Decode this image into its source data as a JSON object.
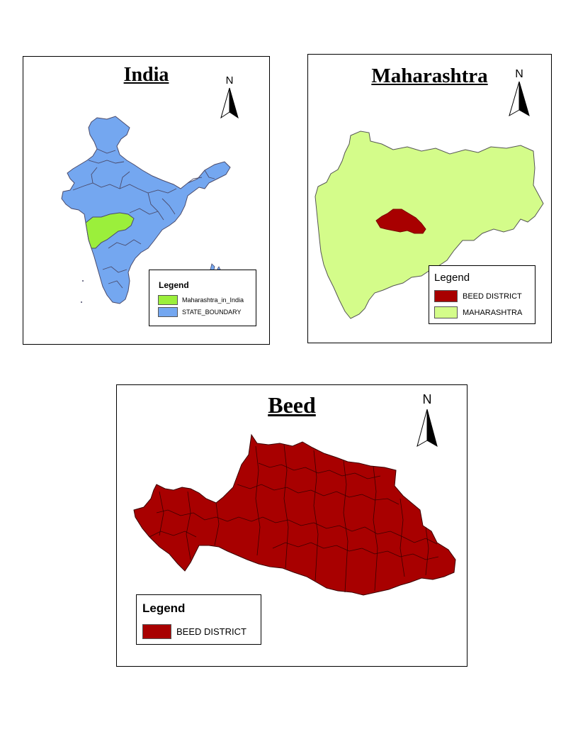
{
  "maps": {
    "india": {
      "title": "India",
      "north_label": "N",
      "legend": {
        "title": "Legend",
        "items": [
          {
            "label": "Maharashtra_in_India",
            "color": "#9bef3b"
          },
          {
            "label": "STATE_BOUNDARY",
            "color": "#74a7f0"
          }
        ]
      }
    },
    "maharashtra": {
      "title": "Maharashtra",
      "north_label": "N",
      "legend": {
        "title": "Legend",
        "items": [
          {
            "label": "BEED DISTRICT",
            "color": "#a80000"
          },
          {
            "label": "MAHARASHTRA",
            "color": "#d4fc8a"
          }
        ]
      }
    },
    "beed": {
      "title": "Beed",
      "north_label": "N",
      "legend": {
        "title": "Legend",
        "items": [
          {
            "label": "BEED DISTRICT",
            "color": "#a80000"
          }
        ]
      }
    }
  },
  "icons": {
    "north_arrow": "north-arrow-icon"
  }
}
